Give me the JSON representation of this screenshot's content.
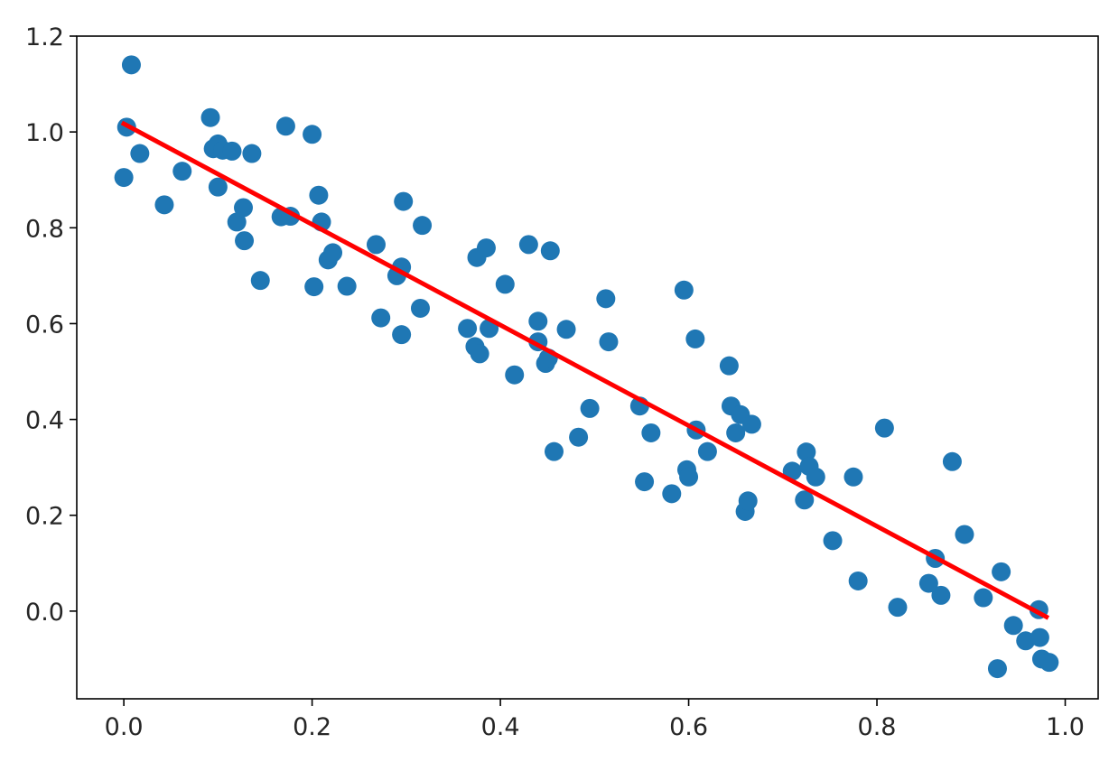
{
  "chart_data": {
    "type": "scatter",
    "title": "",
    "xlabel": "",
    "ylabel": "",
    "xlim": [
      -0.05,
      1.035
    ],
    "ylim": [
      -0.183,
      1.2
    ],
    "x_ticks": [
      {
        "value": 0.0,
        "label": "0.0"
      },
      {
        "value": 0.2,
        "label": "0.2"
      },
      {
        "value": 0.4,
        "label": "0.4"
      },
      {
        "value": 0.6,
        "label": "0.6"
      },
      {
        "value": 0.8,
        "label": "0.8"
      },
      {
        "value": 1.0,
        "label": "1.0"
      }
    ],
    "y_ticks": [
      {
        "value": 0.0,
        "label": "0.0"
      },
      {
        "value": 0.2,
        "label": "0.2"
      },
      {
        "value": 0.4,
        "label": "0.4"
      },
      {
        "value": 0.6,
        "label": "0.6"
      },
      {
        "value": 0.8,
        "label": "0.8"
      },
      {
        "value": 1.0,
        "label": "1.0"
      },
      {
        "value": 1.2,
        "label": "1.2"
      }
    ],
    "grid": false,
    "legend": "none",
    "series": [
      {
        "type": "scatter",
        "color": "#1f77b4",
        "points": [
          [
            0.0,
            0.905
          ],
          [
            0.003,
            1.01
          ],
          [
            0.008,
            1.14
          ],
          [
            0.017,
            0.955
          ],
          [
            0.043,
            0.848
          ],
          [
            0.062,
            0.918
          ],
          [
            0.092,
            1.03
          ],
          [
            0.095,
            0.965
          ],
          [
            0.1,
            0.975
          ],
          [
            0.1,
            0.885
          ],
          [
            0.105,
            0.962
          ],
          [
            0.115,
            0.96
          ],
          [
            0.12,
            0.812
          ],
          [
            0.127,
            0.842
          ],
          [
            0.128,
            0.773
          ],
          [
            0.136,
            0.955
          ],
          [
            0.145,
            0.69
          ],
          [
            0.167,
            0.823
          ],
          [
            0.172,
            1.012
          ],
          [
            0.177,
            0.824
          ],
          [
            0.2,
            0.995
          ],
          [
            0.202,
            0.677
          ],
          [
            0.207,
            0.868
          ],
          [
            0.21,
            0.812
          ],
          [
            0.217,
            0.733
          ],
          [
            0.222,
            0.748
          ],
          [
            0.237,
            0.678
          ],
          [
            0.268,
            0.765
          ],
          [
            0.273,
            0.612
          ],
          [
            0.29,
            0.7
          ],
          [
            0.295,
            0.718
          ],
          [
            0.295,
            0.577
          ],
          [
            0.297,
            0.855
          ],
          [
            0.315,
            0.632
          ],
          [
            0.317,
            0.805
          ],
          [
            0.365,
            0.59
          ],
          [
            0.373,
            0.552
          ],
          [
            0.375,
            0.738
          ],
          [
            0.378,
            0.537
          ],
          [
            0.385,
            0.758
          ],
          [
            0.388,
            0.59
          ],
          [
            0.405,
            0.682
          ],
          [
            0.415,
            0.493
          ],
          [
            0.43,
            0.765
          ],
          [
            0.44,
            0.562
          ],
          [
            0.44,
            0.605
          ],
          [
            0.448,
            0.517
          ],
          [
            0.451,
            0.528
          ],
          [
            0.453,
            0.752
          ],
          [
            0.457,
            0.333
          ],
          [
            0.47,
            0.588
          ],
          [
            0.483,
            0.363
          ],
          [
            0.495,
            0.423
          ],
          [
            0.512,
            0.652
          ],
          [
            0.515,
            0.562
          ],
          [
            0.548,
            0.428
          ],
          [
            0.553,
            0.27
          ],
          [
            0.56,
            0.372
          ],
          [
            0.582,
            0.245
          ],
          [
            0.595,
            0.67
          ],
          [
            0.598,
            0.295
          ],
          [
            0.6,
            0.28
          ],
          [
            0.607,
            0.568
          ],
          [
            0.608,
            0.378
          ],
          [
            0.62,
            0.333
          ],
          [
            0.643,
            0.512
          ],
          [
            0.645,
            0.428
          ],
          [
            0.65,
            0.372
          ],
          [
            0.655,
            0.41
          ],
          [
            0.66,
            0.208
          ],
          [
            0.663,
            0.23
          ],
          [
            0.667,
            0.39
          ],
          [
            0.71,
            0.292
          ],
          [
            0.723,
            0.232
          ],
          [
            0.725,
            0.332
          ],
          [
            0.728,
            0.302
          ],
          [
            0.735,
            0.28
          ],
          [
            0.753,
            0.147
          ],
          [
            0.775,
            0.28
          ],
          [
            0.78,
            0.063
          ],
          [
            0.808,
            0.382
          ],
          [
            0.822,
            0.008
          ],
          [
            0.855,
            0.058
          ],
          [
            0.862,
            0.11
          ],
          [
            0.868,
            0.033
          ],
          [
            0.88,
            0.312
          ],
          [
            0.893,
            0.16
          ],
          [
            0.913,
            0.028
          ],
          [
            0.928,
            -0.12
          ],
          [
            0.932,
            0.082
          ],
          [
            0.945,
            -0.03
          ],
          [
            0.958,
            -0.062
          ],
          [
            0.972,
            0.003
          ],
          [
            0.973,
            -0.055
          ],
          [
            0.975,
            -0.1
          ],
          [
            0.983,
            -0.107
          ]
        ]
      },
      {
        "type": "line",
        "color": "#ff0000",
        "points": [
          [
            0.0,
            1.017
          ],
          [
            0.98,
            -0.012
          ]
        ]
      }
    ]
  }
}
